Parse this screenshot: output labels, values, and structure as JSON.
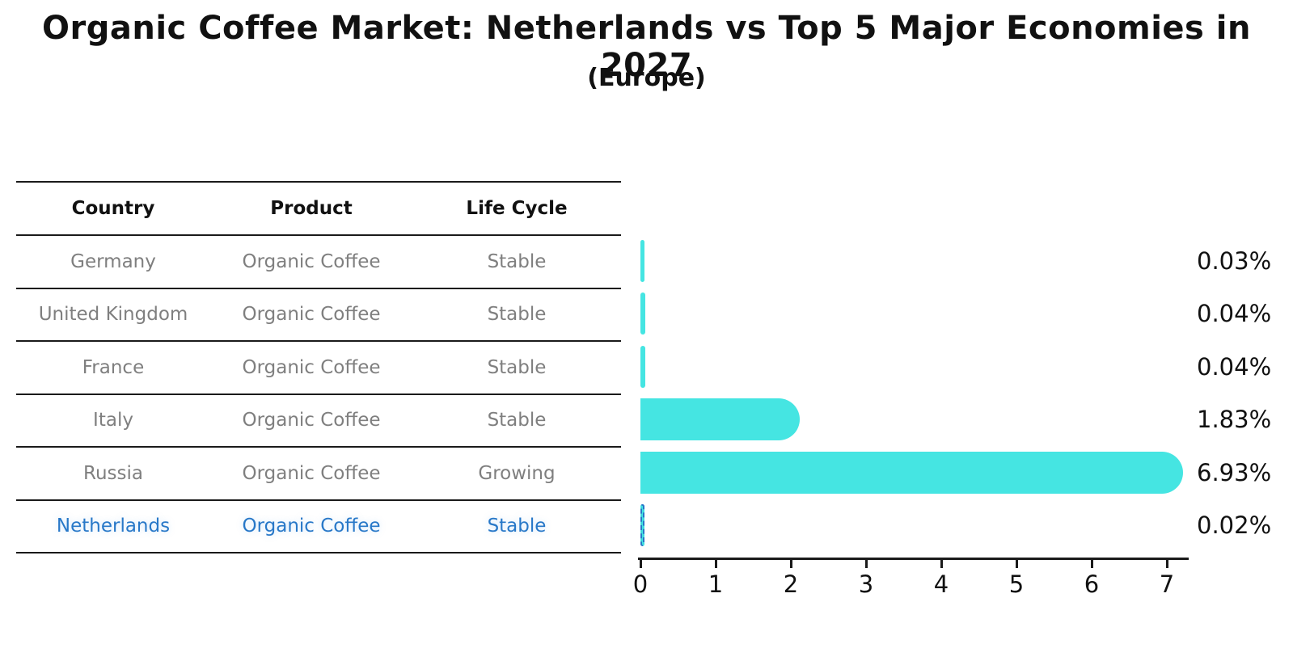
{
  "title": "Organic Coffee Market: Netherlands vs Top 5 Major Economies in 2027",
  "subtitle": "(Europe)",
  "table": {
    "headers": [
      "Country",
      "Product",
      "Life Cycle"
    ],
    "rows": [
      {
        "country": "Germany",
        "product": "Organic Coffee",
        "life_cycle": "Stable",
        "value_label": "0.03%",
        "highlight": false
      },
      {
        "country": "United Kingdom",
        "product": "Organic Coffee",
        "life_cycle": "Stable",
        "value_label": "0.04%",
        "highlight": false
      },
      {
        "country": "France",
        "product": "Organic Coffee",
        "life_cycle": "Stable",
        "value_label": "0.04%",
        "highlight": false
      },
      {
        "country": "Italy",
        "product": "Organic Coffee",
        "life_cycle": "Stable",
        "value_label": "1.83%",
        "highlight": false
      },
      {
        "country": "Russia",
        "product": "Organic Coffee",
        "life_cycle": "Growing",
        "value_label": "6.93%",
        "highlight": false
      },
      {
        "country": "Netherlands",
        "product": "Organic Coffee",
        "life_cycle": "Stable",
        "value_label": "0.02%",
        "highlight": true
      }
    ]
  },
  "chart_data": {
    "type": "bar",
    "orientation": "horizontal",
    "title": "Organic Coffee Market: Netherlands vs Top 5 Major Economies in 2027",
    "subtitle": "(Europe)",
    "categories": [
      "Germany",
      "United Kingdom",
      "France",
      "Italy",
      "Russia",
      "Netherlands"
    ],
    "values": [
      0.03,
      0.04,
      0.04,
      1.83,
      6.93,
      0.02
    ],
    "value_labels": [
      "0.03%",
      "0.04%",
      "0.04%",
      "1.83%",
      "6.93%",
      "0.02%"
    ],
    "x_ticks": [
      0,
      1,
      2,
      3,
      4,
      5,
      6,
      7
    ],
    "xlim": [
      0,
      7.3
    ],
    "xlabel": "",
    "ylabel": "",
    "grid": false,
    "legend": false,
    "highlight_index": 5
  },
  "colors": {
    "bar": "#45e5e2",
    "highlight": "#2878c8",
    "row_text": "#7f7f7f",
    "header_text": "#111111",
    "axis": "#1a1a1a",
    "value_label": "#111111"
  }
}
